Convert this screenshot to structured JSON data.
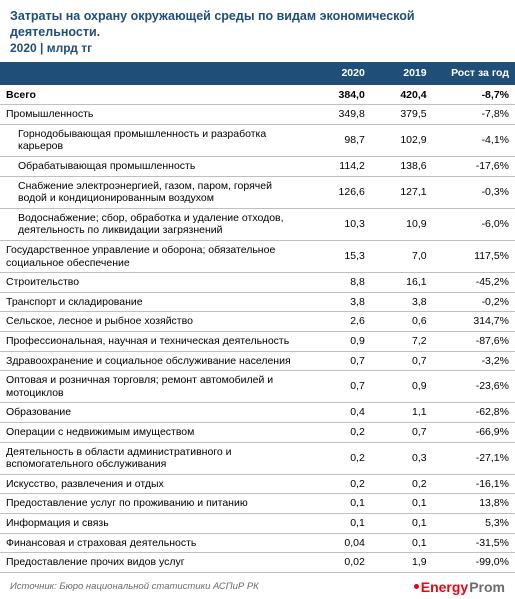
{
  "colors": {
    "title_text": "#1f4e79",
    "header_bg": "#1f4e79",
    "row_border": "#bfbfbf",
    "text": "#000000",
    "source_text": "#6b6b6b",
    "logo_accent": "#e30613",
    "logo_gray": "#6b6b6b",
    "white": "#ffffff"
  },
  "header": {
    "title": "Затраты на охрану окружающей среды по видам экономической деятельности.",
    "subtitle": "2020 | млрд тг"
  },
  "table": {
    "columns": [
      "",
      "2020",
      "2019",
      "Рост за год"
    ],
    "rows": [
      {
        "label": "Всего",
        "v2020": "384,0",
        "v2019": "420,4",
        "growth": "-8,7%",
        "bold": true,
        "indent": false
      },
      {
        "label": "Промышленность",
        "v2020": "349,8",
        "v2019": "379,5",
        "growth": "-7,8%",
        "bold": false,
        "indent": false
      },
      {
        "label": "Горнодобывающая промышленность и разработка карьеров",
        "v2020": "98,7",
        "v2019": "102,9",
        "growth": "-4,1%",
        "bold": false,
        "indent": true
      },
      {
        "label": "Обрабатывающая промышленность",
        "v2020": "114,2",
        "v2019": "138,6",
        "growth": "-17,6%",
        "bold": false,
        "indent": true
      },
      {
        "label": "Снабжение электроэнергией, газом, паром, горячей водой и кондиционированным воздухом",
        "v2020": "126,6",
        "v2019": "127,1",
        "growth": "-0,3%",
        "bold": false,
        "indent": true
      },
      {
        "label": "Водоснабжение; сбор, обработка и удаление отходов, деятельность по ликвидации загрязнений",
        "v2020": "10,3",
        "v2019": "10,9",
        "growth": "-6,0%",
        "bold": false,
        "indent": true
      },
      {
        "label": "Государственное управление и оборона; обязательное социальное обеспечение",
        "v2020": "15,3",
        "v2019": "7,0",
        "growth": "117,5%",
        "bold": false,
        "indent": false
      },
      {
        "label": "Строительство",
        "v2020": "8,8",
        "v2019": "16,1",
        "growth": "-45,2%",
        "bold": false,
        "indent": false
      },
      {
        "label": "Транспорт и складирование",
        "v2020": "3,8",
        "v2019": "3,8",
        "growth": "-0,2%",
        "bold": false,
        "indent": false
      },
      {
        "label": "Сельское, лесное и рыбное хозяйство",
        "v2020": "2,6",
        "v2019": "0,6",
        "growth": "314,7%",
        "bold": false,
        "indent": false
      },
      {
        "label": "Профессиональная, научная и техническая деятельность",
        "v2020": "0,9",
        "v2019": "7,2",
        "growth": "-87,6%",
        "bold": false,
        "indent": false
      },
      {
        "label": "Здравоохранение и социальное обслуживание населения",
        "v2020": "0,7",
        "v2019": "0,7",
        "growth": "-3,2%",
        "bold": false,
        "indent": false
      },
      {
        "label": "Оптовая и розничная торговля; ремонт автомобилей и мотоциклов",
        "v2020": "0,7",
        "v2019": "0,9",
        "growth": "-23,6%",
        "bold": false,
        "indent": false
      },
      {
        "label": "Образование",
        "v2020": "0,4",
        "v2019": "1,1",
        "growth": "-62,8%",
        "bold": false,
        "indent": false
      },
      {
        "label": "Операции с недвижимым имуществом",
        "v2020": "0,2",
        "v2019": "0,7",
        "growth": "-66,9%",
        "bold": false,
        "indent": false
      },
      {
        "label": "Деятельность в области административного и вспомогательного обслуживания",
        "v2020": "0,2",
        "v2019": "0,3",
        "growth": "-27,1%",
        "bold": false,
        "indent": false
      },
      {
        "label": "Искусство, развлечения и отдых",
        "v2020": "0,2",
        "v2019": "0,2",
        "growth": "-16,1%",
        "bold": false,
        "indent": false
      },
      {
        "label": "Предоставление услуг по проживанию и питанию",
        "v2020": "0,1",
        "v2019": "0,1",
        "growth": "13,8%",
        "bold": false,
        "indent": false
      },
      {
        "label": "Информация и связь",
        "v2020": "0,1",
        "v2019": "0,1",
        "growth": "5,3%",
        "bold": false,
        "indent": false
      },
      {
        "label": "Финансовая и страховая деятельность",
        "v2020": "0,04",
        "v2019": "0,1",
        "growth": "-31,5%",
        "bold": false,
        "indent": false
      },
      {
        "label": "Предоставление прочих видов услуг",
        "v2020": "0,02",
        "v2019": "1,9",
        "growth": "-99,0%",
        "bold": false,
        "indent": false
      }
    ]
  },
  "footer": {
    "source": "Источник: Бюро национальной статистики АСПиР РК",
    "logo_energy": "Energy",
    "logo_prom": "Prom"
  }
}
